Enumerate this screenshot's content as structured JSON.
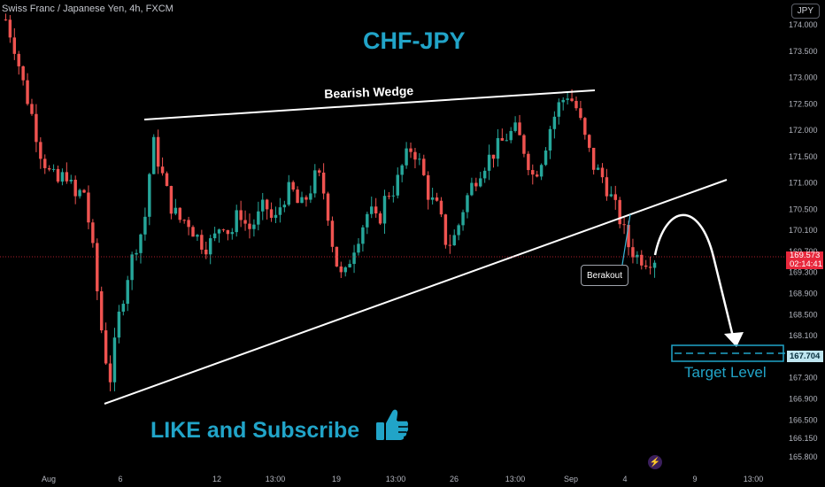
{
  "header": {
    "symbol": "Swiss Franc / Japanese Yen, 4h, FXCM",
    "currency_button": "JPY"
  },
  "annotations": {
    "title": "CHF-JPY",
    "wedge_label": "Bearish Wedge",
    "breakout_label": "Berakout",
    "target_label": "Target Level",
    "cta": "LIKE and Subscribe"
  },
  "price_scale": {
    "current_price": "169.573",
    "countdown": "02:14:41",
    "target_price": "167.704"
  },
  "colors": {
    "bull": "#26a69a",
    "bear": "#ef5350",
    "accent": "#21a4c8",
    "line": "#ffffff"
  },
  "icons": {
    "thumb": "thumbs-up-icon",
    "bolt": "lightning-icon"
  },
  "chart_data": {
    "type": "candlestick",
    "instrument": "Swiss Franc / Japanese Yen",
    "timeframe": "4h",
    "ylim": [
      165.7,
      174.2
    ],
    "y_ticks": [
      "174.000",
      "173.500",
      "173.000",
      "172.500",
      "172.000",
      "171.500",
      "171.000",
      "170.500",
      "170.100",
      "169.700",
      "169.300",
      "168.900",
      "168.500",
      "168.100",
      "167.300",
      "166.900",
      "166.500",
      "166.150",
      "165.800"
    ],
    "y_tick_values": [
      174.0,
      173.5,
      173.0,
      172.5,
      172.0,
      171.5,
      171.0,
      170.5,
      170.1,
      169.7,
      169.3,
      168.9,
      168.5,
      168.1,
      167.3,
      166.9,
      166.5,
      166.15,
      165.8
    ],
    "x_ticks": [
      "Aug",
      "6",
      "12",
      "13:00",
      "19",
      "13:00",
      "26",
      "13:00",
      "Sep",
      "4",
      "9",
      "13:00"
    ],
    "close_path": [
      174.1,
      173.6,
      172.9,
      172.3,
      171.6,
      171.2,
      171.0,
      171.2,
      170.7,
      170.9,
      169.8,
      168.3,
      167.2,
      168.4,
      169.2,
      169.8,
      170.2,
      171.8,
      171.2,
      170.6,
      170.3,
      170.3,
      170.0,
      169.8,
      169.9,
      170.3,
      170.0,
      170.5,
      170.1,
      170.3,
      170.6,
      170.2,
      170.7,
      170.9,
      170.5,
      170.8,
      171.2,
      170.7,
      169.6,
      169.1,
      169.7,
      170.1,
      170.5,
      170.2,
      170.8,
      170.9,
      171.4,
      171.7,
      171.3,
      170.7,
      170.5,
      169.8,
      170.0,
      170.6,
      171.0,
      171.3,
      171.5,
      171.7,
      171.9,
      172.0,
      171.6,
      171.1,
      171.5,
      172.1,
      172.5,
      172.7,
      172.4,
      171.8,
      171.3,
      171.1,
      170.7,
      170.3,
      169.8,
      169.6,
      169.55,
      169.573
    ],
    "trendlines": [
      {
        "name": "Bearish Wedge",
        "points": [
          [
            "6",
            172.1
          ],
          [
            "Sep",
            172.75
          ]
        ]
      },
      {
        "name": "support",
        "points": [
          [
            "Aug",
            166.75
          ],
          [
            "9",
            171.1
          ]
        ]
      }
    ],
    "target": 167.704
  }
}
